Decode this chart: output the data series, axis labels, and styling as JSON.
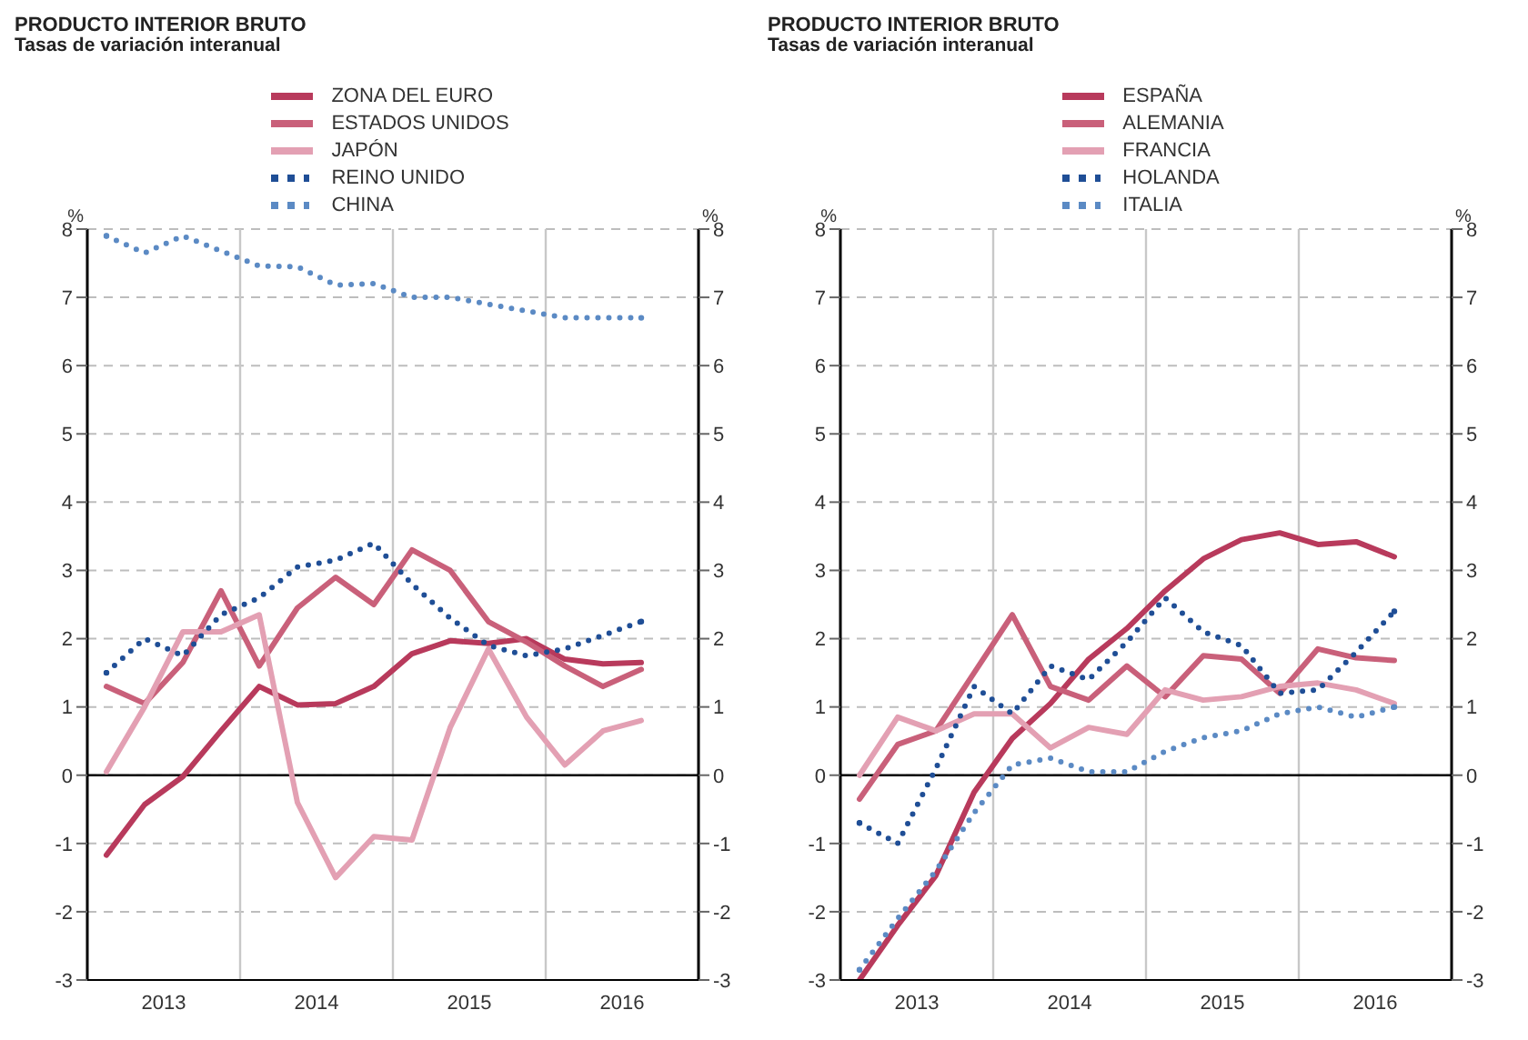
{
  "chart_data": [
    {
      "type": "line",
      "title": "PRODUCTO INTERIOR BRUTO",
      "subtitle": "Tasas de variación interanual",
      "ylabel": "%",
      "y2label": "%",
      "x": [
        2013.125,
        2013.375,
        2013.625,
        2013.875,
        2014.125,
        2014.375,
        2014.625,
        2014.875,
        2015.125,
        2015.375,
        2015.625,
        2015.875,
        2016.125,
        2016.375,
        2016.625
      ],
      "series": [
        {
          "name": "ZONA DEL EURO",
          "color": "#b83a5c",
          "line_style": "solid",
          "values": [
            -1.17,
            -0.43,
            -0.02,
            0.65,
            1.3,
            1.03,
            1.05,
            1.3,
            1.78,
            1.97,
            1.93,
            2.0,
            1.7,
            1.63,
            1.65
          ]
        },
        {
          "name": "ESTADOS UNIDOS",
          "color": "#c9607a",
          "line_style": "solid",
          "values": [
            1.3,
            1.05,
            1.65,
            2.7,
            1.6,
            2.45,
            2.9,
            2.5,
            3.3,
            3.0,
            2.25,
            1.95,
            1.6,
            1.3,
            1.55
          ]
        },
        {
          "name": "JAPÓN",
          "color": "#e3a0b3",
          "line_style": "solid",
          "values": [
            0.05,
            1.0,
            2.1,
            2.1,
            2.35,
            -0.4,
            -1.5,
            -0.9,
            -0.95,
            0.7,
            1.85,
            0.85,
            0.15,
            0.65,
            0.8
          ]
        },
        {
          "name": "REINO UNIDO",
          "color": "#1f4e96",
          "line_style": "dotted",
          "values": [
            1.5,
            2.0,
            1.75,
            2.35,
            2.6,
            3.05,
            3.15,
            3.4,
            2.8,
            2.3,
            1.9,
            1.75,
            1.85,
            2.05,
            2.25
          ]
        },
        {
          "name": "CHINA",
          "color": "#5b8ac4",
          "line_style": "dotted",
          "values": [
            7.9,
            7.65,
            7.9,
            7.68,
            7.46,
            7.45,
            7.18,
            7.2,
            7.0,
            7.0,
            6.9,
            6.8,
            6.7,
            6.7,
            6.7
          ]
        }
      ],
      "xlim": [
        2013,
        2017
      ],
      "xticks": [
        {
          "value": 2013.5,
          "label": "2013"
        },
        {
          "value": 2014.5,
          "label": "2014"
        },
        {
          "value": 2015.5,
          "label": "2015"
        },
        {
          "value": 2016.5,
          "label": "2016"
        }
      ],
      "ylim": [
        -3,
        8
      ],
      "yticks": [
        -3,
        -2,
        -1,
        0,
        1,
        2,
        3,
        4,
        5,
        6,
        7,
        8
      ],
      "y2lim": [
        -3,
        8
      ],
      "y2ticks": [
        -3,
        -2,
        -1,
        0,
        1,
        2,
        3,
        4,
        5,
        6,
        7,
        8
      ],
      "ref_lines": [
        {
          "axis": "x",
          "value": 2014,
          "label": null,
          "color": "#c8c8c8"
        },
        {
          "axis": "x",
          "value": 2015,
          "label": null,
          "color": "#c8c8c8"
        },
        {
          "axis": "x",
          "value": 2016,
          "label": null,
          "color": "#c8c8c8"
        },
        {
          "axis": "y",
          "value": 0,
          "label": null,
          "color": "#000000"
        }
      ],
      "grid": "y",
      "legend": "top",
      "marker": "none"
    },
    {
      "type": "line",
      "title": "PRODUCTO INTERIOR BRUTO",
      "subtitle": "Tasas de variación interanual",
      "ylabel": "%",
      "y2label": "%",
      "x": [
        2013.125,
        2013.375,
        2013.625,
        2013.875,
        2014.125,
        2014.375,
        2014.625,
        2014.875,
        2015.125,
        2015.375,
        2015.625,
        2015.875,
        2016.125,
        2016.375,
        2016.625
      ],
      "series": [
        {
          "name": "ESPAÑA",
          "color": "#b83a5c",
          "line_style": "solid",
          "values": [
            -3.0,
            -2.2,
            -1.47,
            -0.25,
            0.54,
            1.05,
            1.7,
            2.15,
            2.7,
            3.17,
            3.45,
            3.55,
            3.38,
            3.42,
            3.2
          ]
        },
        {
          "name": "ALEMANIA",
          "color": "#c9607a",
          "line_style": "solid",
          "values": [
            -0.35,
            0.45,
            0.65,
            1.5,
            2.35,
            1.3,
            1.1,
            1.6,
            1.15,
            1.75,
            1.7,
            1.2,
            1.85,
            1.72,
            1.68
          ]
        },
        {
          "name": "FRANCIA",
          "color": "#e3a0b3",
          "line_style": "solid",
          "values": [
            0.0,
            0.85,
            0.65,
            0.9,
            0.9,
            0.4,
            0.7,
            0.6,
            1.25,
            1.1,
            1.15,
            1.3,
            1.35,
            1.25,
            1.05
          ]
        },
        {
          "name": "HOLANDA",
          "color": "#1f4e96",
          "line_style": "dotted",
          "values": [
            -0.7,
            -1.0,
            0.1,
            1.3,
            0.9,
            1.6,
            1.4,
            1.95,
            2.6,
            2.1,
            1.9,
            1.2,
            1.25,
            1.8,
            2.4
          ]
        },
        {
          "name": "ITALIA",
          "color": "#5b8ac4",
          "line_style": "dotted",
          "values": [
            -2.85,
            -2.1,
            -1.4,
            -0.55,
            0.15,
            0.25,
            0.05,
            0.05,
            0.35,
            0.55,
            0.65,
            0.9,
            1.0,
            0.85,
            1.0
          ]
        }
      ],
      "xlim": [
        2013,
        2017
      ],
      "xticks": [
        {
          "value": 2013.5,
          "label": "2013"
        },
        {
          "value": 2014.5,
          "label": "2014"
        },
        {
          "value": 2015.5,
          "label": "2015"
        },
        {
          "value": 2016.5,
          "label": "2016"
        }
      ],
      "ylim": [
        -3,
        8
      ],
      "yticks": [
        -3,
        -2,
        -1,
        0,
        1,
        2,
        3,
        4,
        5,
        6,
        7,
        8
      ],
      "y2lim": [
        -3,
        8
      ],
      "y2ticks": [
        -3,
        -2,
        -1,
        0,
        1,
        2,
        3,
        4,
        5,
        6,
        7,
        8
      ],
      "ref_lines": [
        {
          "axis": "x",
          "value": 2014,
          "label": null,
          "color": "#c8c8c8"
        },
        {
          "axis": "x",
          "value": 2015,
          "label": null,
          "color": "#c8c8c8"
        },
        {
          "axis": "x",
          "value": 2016,
          "label": null,
          "color": "#c8c8c8"
        },
        {
          "axis": "y",
          "value": 0,
          "label": null,
          "color": "#000000"
        }
      ],
      "grid": "y",
      "legend": "top",
      "marker": "none"
    }
  ]
}
